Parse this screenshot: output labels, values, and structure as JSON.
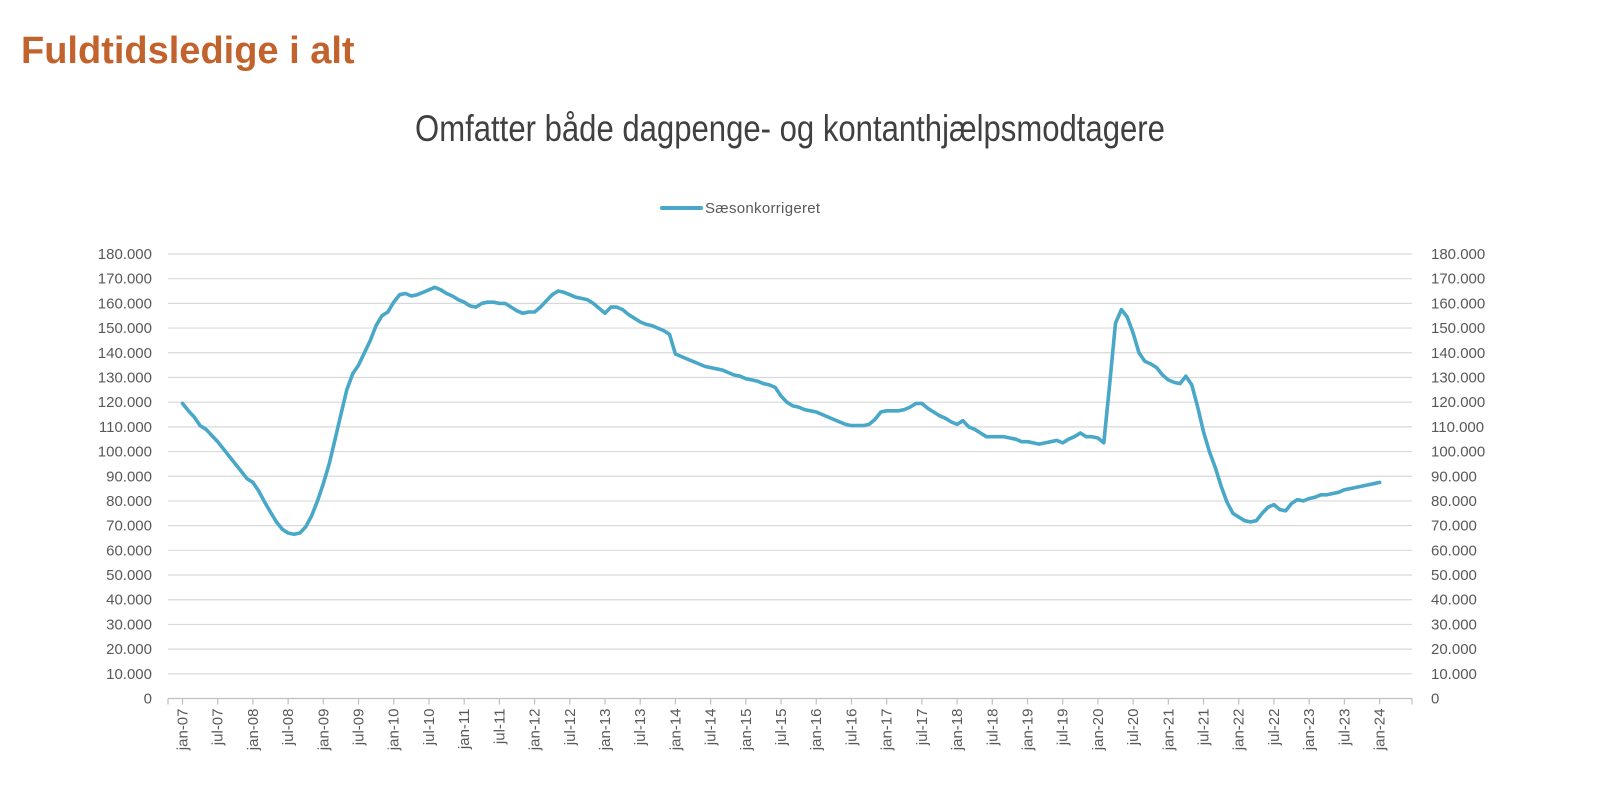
{
  "page": {
    "title": "Fuldtidsledige i alt"
  },
  "colors": {
    "page_title": "#C2632E",
    "chart_title": "#404040",
    "axis_text": "#595959",
    "gridline": "#D9D9D9",
    "axis_line": "#BFBFBF",
    "series_line": "#49A7C7"
  },
  "chart_data": {
    "type": "line",
    "title": "Omfatter både dagpenge- og kontanthjælpsmodtagere",
    "legend_entries": [
      "Sæsonkorrigeret"
    ],
    "legend_position": "top",
    "grid": true,
    "ylim": [
      0,
      180000
    ],
    "y_tick_step": 10000,
    "y_tick_labels": [
      "0",
      "10.000",
      "20.000",
      "30.000",
      "40.000",
      "50.000",
      "60.000",
      "70.000",
      "80.000",
      "90.000",
      "100.000",
      "110.000",
      "120.000",
      "130.000",
      "140.000",
      "150.000",
      "160.000",
      "170.000",
      "180.000"
    ],
    "x_tick_labels": [
      "jan-07",
      "jul-07",
      "jan-08",
      "jul-08",
      "jan-09",
      "jul-09",
      "jan-10",
      "jul-10",
      "jan-11",
      "jul-11",
      "jan-12",
      "jul-12",
      "jan-13",
      "jul-13",
      "jan-14",
      "jul-14",
      "jan-15",
      "jul-15",
      "jan-16",
      "jul-16",
      "jan-17",
      "jul-17",
      "jan-18",
      "jul-18",
      "jan-19",
      "jul-19",
      "jan-20",
      "jul-20",
      "jan-21",
      "jul-21",
      "jan-22",
      "jul-22",
      "jan-23",
      "jul-23",
      "jan-24"
    ],
    "months_per_tick": 6,
    "series": [
      {
        "name": "Sæsonkorrigeret",
        "color": "#49A7C7",
        "start": "jan-07",
        "frequency": "monthly",
        "values": [
          119500,
          116500,
          114000,
          110500,
          109000,
          106500,
          104000,
          101000,
          98000,
          95000,
          92000,
          89000,
          87500,
          84000,
          79500,
          75500,
          71500,
          68500,
          67000,
          66500,
          67000,
          69500,
          74000,
          80000,
          87000,
          95000,
          105000,
          115000,
          125000,
          131500,
          135000,
          140000,
          145000,
          151000,
          155000,
          156500,
          160500,
          163500,
          164000,
          163000,
          163500,
          164500,
          165500,
          166500,
          165500,
          164000,
          163000,
          161500,
          160500,
          159000,
          158500,
          160000,
          160500,
          160500,
          160000,
          160000,
          158500,
          157000,
          156000,
          156500,
          156500,
          158500,
          161000,
          163500,
          165000,
          164500,
          163500,
          162500,
          162000,
          161500,
          160000,
          158000,
          156000,
          158500,
          158500,
          157500,
          155500,
          154000,
          152500,
          151500,
          151000,
          150000,
          149000,
          147500,
          139500,
          138500,
          137500,
          136500,
          135500,
          134500,
          134000,
          133500,
          133000,
          132000,
          131000,
          130500,
          129500,
          129000,
          128500,
          127500,
          127000,
          126000,
          122500,
          120000,
          118500,
          118000,
          117000,
          116500,
          116000,
          115000,
          114000,
          113000,
          112000,
          111000,
          110500,
          110500,
          110500,
          111000,
          113000,
          116000,
          116500,
          116500,
          116500,
          117000,
          118000,
          119500,
          119500,
          117500,
          116000,
          114500,
          113500,
          112000,
          111000,
          112500,
          110000,
          109000,
          107500,
          106000,
          106000,
          106000,
          106000,
          105500,
          105000,
          104000,
          104000,
          103500,
          103000,
          103500,
          104000,
          104500,
          103500,
          105000,
          106000,
          107500,
          106000,
          106000,
          105500,
          103500,
          127000,
          152000,
          157500,
          154500,
          148000,
          140000,
          136500,
          135500,
          134000,
          131000,
          129000,
          128000,
          127500,
          130500,
          127000,
          118000,
          108000,
          100000,
          93500,
          86000,
          79500,
          75000,
          73500,
          72000,
          71500,
          72000,
          75000,
          77500,
          78500,
          76500,
          76000,
          79000,
          80500,
          80000,
          81000,
          81500,
          82500,
          82500,
          83000,
          83500,
          84500,
          85000,
          85500,
          86000,
          86500,
          87000,
          87500
        ]
      }
    ]
  }
}
